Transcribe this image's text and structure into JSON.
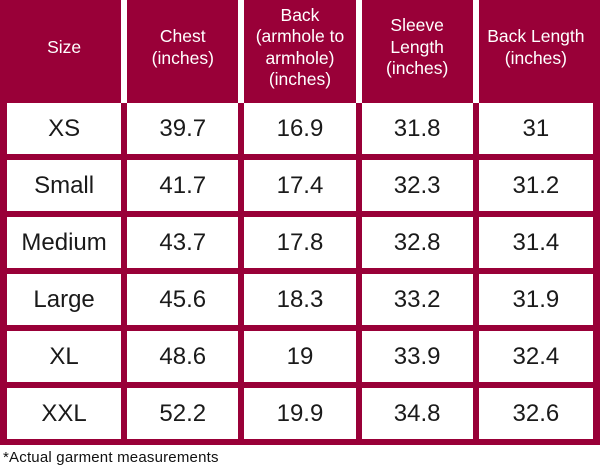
{
  "colors": {
    "maroon": "#990038",
    "header_text": "#ffffff",
    "body_text": "#1a1a1a"
  },
  "table": {
    "columns": [
      "Size",
      "Chest\n(inches)",
      "Back\n(armhole to\narmhole)\n(inches)",
      "Sleeve Length\n(inches)",
      "Back Length\n(inches)"
    ],
    "rows": [
      [
        "XS",
        "39.7",
        "16.9",
        "31.8",
        "31"
      ],
      [
        "Small",
        "41.7",
        "17.4",
        "32.3",
        "31.2"
      ],
      [
        "Medium",
        "43.7",
        "17.8",
        "32.8",
        "31.4"
      ],
      [
        "Large",
        "45.6",
        "18.3",
        "33.2",
        "31.9"
      ],
      [
        "XL",
        "48.6",
        "19",
        "33.9",
        "32.4"
      ],
      [
        "XXL",
        "52.2",
        "19.9",
        "34.8",
        "32.6"
      ]
    ]
  },
  "footnote": "*Actual garment measurements"
}
